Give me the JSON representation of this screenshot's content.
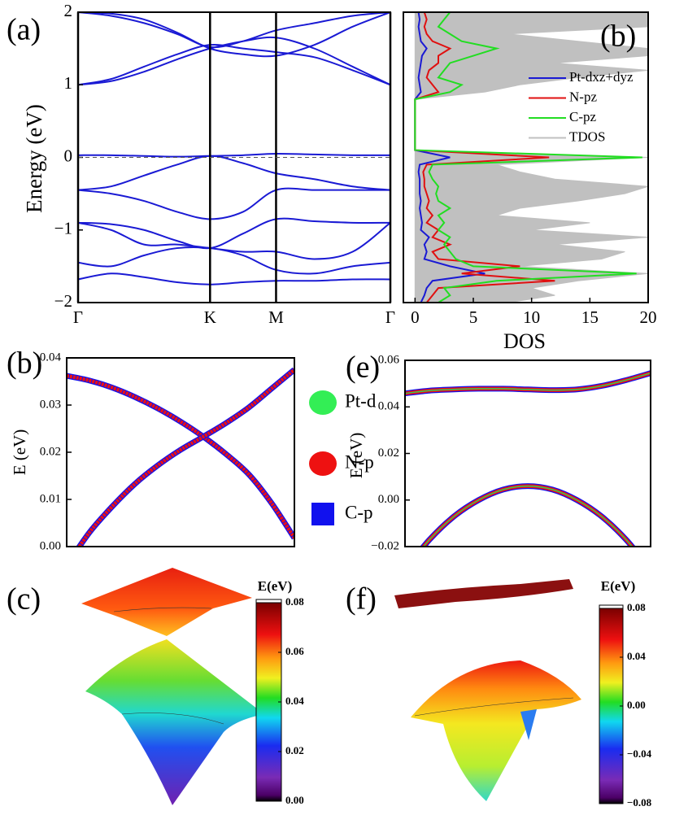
{
  "chart_data": [
    {
      "type": "line",
      "panel_label": "(a)",
      "ylabel": "Energy (eV)",
      "xlim": [
        0,
        2.366
      ],
      "ylim": [
        -2,
        2
      ],
      "xticks": [
        {
          "value": 0,
          "label": "Γ"
        },
        {
          "value": 1,
          "label": "K"
        },
        {
          "value": 1.5,
          "label": "M"
        },
        {
          "value": 2.366,
          "label": "Γ"
        }
      ],
      "yticks": [
        {
          "value": -2,
          "label": "−2"
        },
        {
          "value": -1,
          "label": "−1"
        },
        0,
        1,
        2
      ],
      "xgrid": true,
      "reference_line": 0,
      "color": "#1a1ad4",
      "x": [
        0,
        0.25,
        0.5,
        0.75,
        1,
        1.25,
        1.5,
        1.79,
        2.08,
        2.366
      ],
      "series": [
        {
          "values": [
            1.0,
            1.05,
            1.18,
            1.35,
            1.5,
            1.6,
            1.65,
            1.5,
            1.25,
            1.0
          ]
        },
        {
          "values": [
            1.0,
            1.08,
            1.25,
            1.42,
            1.55,
            1.5,
            1.45,
            1.38,
            1.2,
            1.0
          ]
        },
        {
          "values": [
            2.0,
            1.95,
            1.85,
            1.7,
            1.52,
            1.6,
            1.75,
            1.85,
            1.95,
            2.0
          ]
        },
        {
          "values": [
            2.0,
            1.98,
            1.9,
            1.72,
            1.5,
            1.42,
            1.4,
            1.55,
            1.8,
            2.0
          ]
        },
        {
          "values": [
            0.03,
            0.03,
            0.02,
            0.01,
            0.02,
            0.03,
            0.05,
            0.04,
            0.03,
            0.03
          ]
        },
        {
          "values": [
            -0.45,
            -0.4,
            -0.25,
            -0.1,
            0.02,
            -0.08,
            -0.22,
            -0.3,
            -0.4,
            -0.45
          ]
        },
        {
          "values": [
            -0.45,
            -0.5,
            -0.6,
            -0.75,
            -0.85,
            -0.75,
            -0.45,
            -0.45,
            -0.45,
            -0.45
          ]
        },
        {
          "values": [
            -0.9,
            -0.92,
            -1.0,
            -1.15,
            -1.25,
            -1.05,
            -0.85,
            -0.88,
            -0.9,
            -0.9
          ]
        },
        {
          "values": [
            -0.9,
            -1.0,
            -1.2,
            -1.2,
            -1.25,
            -1.3,
            -1.3,
            -1.4,
            -1.3,
            -0.9
          ]
        },
        {
          "values": [
            -1.45,
            -1.5,
            -1.35,
            -1.25,
            -1.25,
            -1.35,
            -1.55,
            -1.6,
            -1.5,
            -1.45
          ]
        },
        {
          "values": [
            -1.68,
            -1.6,
            -1.65,
            -1.72,
            -1.75,
            -1.72,
            -1.7,
            -1.7,
            -1.68,
            -1.68
          ]
        }
      ]
    },
    {
      "type": "line",
      "orientation": "horizontal",
      "panel_label": "(b)",
      "xlabel": "DOS",
      "xlim": [
        -1,
        20
      ],
      "ylim": [
        -2,
        2
      ],
      "xticks": [
        0,
        5,
        10,
        15,
        20
      ],
      "legend": "upper right",
      "y": [
        -2,
        -1.9,
        -1.8,
        -1.7,
        -1.6,
        -1.5,
        -1.4,
        -1.3,
        -1.2,
        -1.1,
        -1,
        -0.9,
        -0.8,
        -0.7,
        -0.6,
        -0.5,
        -0.4,
        -0.3,
        -0.2,
        -0.1,
        0,
        0.1,
        0.2,
        0.3,
        0.4,
        0.5,
        0.6,
        0.7,
        0.8,
        0.9,
        1,
        1.1,
        1.2,
        1.3,
        1.4,
        1.5,
        1.6,
        1.7,
        1.8,
        1.9,
        2
      ],
      "series": [
        {
          "name": "Pt-dxz+dyz",
          "color": "#1a1ad4",
          "values": [
            0.5,
            0.8,
            1,
            1.5,
            6,
            3,
            0.8,
            1,
            0.8,
            1.2,
            0.5,
            0.6,
            0.5,
            0.4,
            0.5,
            0.4,
            0.4,
            0.4,
            0.3,
            0.4,
            3,
            0,
            0,
            0,
            0,
            0,
            0,
            0,
            0,
            0.5,
            0.4,
            0.3,
            0.4,
            0.5,
            0.6,
            1,
            0.5,
            0.4,
            0.3,
            0.4,
            0.3
          ]
        },
        {
          "name": "N-pz",
          "color": "#e01010",
          "values": [
            1,
            1.5,
            2,
            12,
            4,
            9,
            2,
            1.5,
            3,
            1.5,
            2,
            1,
            1.5,
            1,
            1.2,
            1,
            0.8,
            0.8,
            0.7,
            1,
            11.5,
            0,
            0,
            0,
            0,
            0,
            0,
            0,
            0,
            2,
            1.5,
            1,
            1.2,
            2,
            2,
            3,
            1.5,
            1,
            0.8,
            1,
            0.8
          ]
        },
        {
          "name": "C-pz",
          "color": "#22dd22",
          "values": [
            2,
            3,
            2.5,
            7,
            19,
            5,
            3.5,
            3,
            2.5,
            3,
            2,
            2.5,
            2,
            3,
            2,
            1.8,
            2,
            1.5,
            1.2,
            1.5,
            19.5,
            0,
            0,
            0,
            0,
            0,
            0,
            0,
            0,
            3,
            4,
            2,
            2.5,
            3,
            5,
            7,
            4,
            3,
            2,
            2.5,
            3
          ]
        },
        {
          "name": "TDOS",
          "color": "#c0c0c0",
          "fill": true,
          "values": [
            8,
            12,
            10,
            14,
            20,
            9,
            16,
            18,
            12,
            20,
            10,
            15,
            7,
            9,
            14,
            18,
            20,
            12,
            9,
            7,
            20,
            0,
            0,
            0,
            0,
            0,
            0,
            0,
            0,
            6,
            9,
            14,
            20,
            12,
            20,
            20,
            14,
            8,
            20,
            20,
            20
          ]
        }
      ]
    },
    {
      "type": "line",
      "panel_label": "(b)",
      "ylabel": "E (eV)",
      "ylim": [
        0,
        0.04
      ],
      "yticks": [
        {
          "value": 0,
          "label": "0.00"
        },
        0.01,
        0.02,
        0.03,
        0.04
      ],
      "legend": "right",
      "series": [
        {
          "name": "Pt-d",
          "color": "#33ee55",
          "marker": "circle"
        },
        {
          "name": "N-p",
          "color": "#ee1111",
          "marker": "circle"
        },
        {
          "name": "C-p",
          "color": "#1111ee",
          "marker": "square"
        }
      ],
      "bands": [
        [
          0.0362,
          0.0352,
          0.0337,
          0.0317,
          0.0293,
          0.0265,
          0.0233,
          0.0196,
          0.0153,
          0.0092,
          0.0018
        ],
        [
          -0.004,
          0.003,
          0.0085,
          0.0133,
          0.0172,
          0.0205,
          0.0233,
          0.0262,
          0.0295,
          0.0335,
          0.0375
        ]
      ]
    },
    {
      "type": "line",
      "panel_label": "(e)",
      "ylabel": "E (eV)",
      "ylim": [
        -0.02,
        0.06
      ],
      "yticks": [
        {
          "value": -0.02,
          "label": "−0.02"
        },
        {
          "value": 0,
          "label": "0.00"
        },
        0.02,
        0.04,
        0.06
      ],
      "band_colors": [
        "#1111ee",
        "#ee1111",
        "#33cc55"
      ],
      "bands": [
        [
          0.0458,
          0.047,
          0.0475,
          0.0478,
          0.0478,
          0.0475,
          0.0472,
          0.0475,
          0.049,
          0.0515,
          0.0545
        ],
        [
          -0.03,
          -0.017,
          -0.007,
          0,
          0.0045,
          0.006,
          0.0045,
          0,
          -0.007,
          -0.017,
          -0.03
        ]
      ]
    },
    {
      "type": "surface",
      "panel_label": "(c)",
      "colorbar": {
        "title": "E(eV)",
        "lim": [
          0,
          0.08
        ],
        "ticks": [
          {
            "value": 0,
            "label": "0.00"
          },
          0.02,
          0.04,
          0.06,
          0.08
        ]
      }
    },
    {
      "type": "surface",
      "panel_label": "(f)",
      "colorbar": {
        "title": "E(eV)",
        "lim": [
          -0.08,
          0.08
        ],
        "ticks": [
          {
            "value": -0.08,
            "label": "−0.08"
          },
          {
            "value": -0.04,
            "label": "−0.04"
          },
          {
            "value": 0,
            "label": "0.00"
          },
          0.04,
          0.08
        ]
      }
    }
  ]
}
